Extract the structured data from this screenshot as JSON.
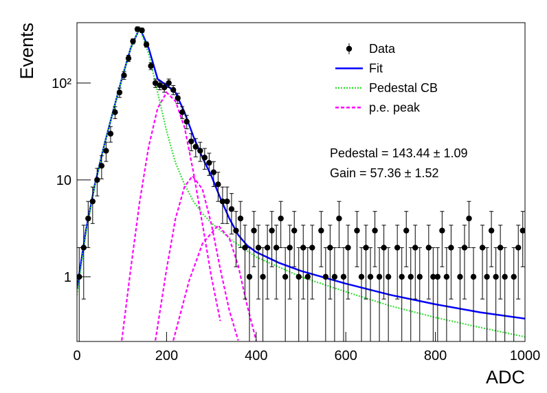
{
  "chart_data": {
    "type": "scatter",
    "xlabel": "ADC",
    "ylabel": "Events",
    "xlim": [
      0,
      1000
    ],
    "ylim": [
      0.215,
      420
    ],
    "xticks": [
      0,
      200,
      400,
      600,
      800,
      1000
    ],
    "yticks": [
      1,
      10,
      {
        "value": 100,
        "label": "10²"
      }
    ],
    "log_y": true,
    "grid": false,
    "legend": "upper right",
    "annotations": [
      "Pedestal = 143.44 ± 1.09",
      "Gain = 57.36 ± 1.52"
    ],
    "series": [
      {
        "name": "Data",
        "type": "scatter",
        "color": "#000000",
        "x": [
          5,
          15,
          25,
          35,
          45,
          55,
          65,
          75,
          85,
          95,
          105,
          115,
          125,
          135,
          145,
          155,
          165,
          175,
          185,
          195,
          205,
          215,
          225,
          235,
          245,
          255,
          265,
          275,
          285,
          295,
          305,
          315,
          325,
          335,
          345,
          355,
          365,
          375,
          385,
          395,
          405,
          415,
          425,
          435,
          445,
          455,
          465,
          475,
          485,
          495,
          505,
          515,
          525,
          535,
          545,
          555,
          565,
          575,
          585,
          595,
          605,
          615,
          625,
          635,
          645,
          655,
          665,
          675,
          685,
          695,
          705,
          715,
          725,
          735,
          745,
          755,
          765,
          775,
          785,
          795,
          805,
          815,
          825,
          835,
          845,
          855,
          865,
          875,
          885,
          895,
          905,
          915,
          925,
          935,
          945,
          955,
          965,
          975,
          985,
          995
        ],
        "values": [
          1,
          2,
          4,
          6,
          10,
          14,
          20,
          30,
          50,
          80,
          120,
          180,
          270,
          360,
          350,
          250,
          150,
          100,
          95,
          90,
          100,
          85,
          70,
          50,
          40,
          25,
          22,
          20,
          17,
          15,
          12,
          9,
          6,
          6,
          5,
          3,
          4,
          2,
          1,
          3,
          2,
          1,
          2,
          3,
          2,
          4,
          1,
          2,
          3,
          1,
          2,
          1,
          2,
          null,
          3,
          1,
          2,
          1,
          4,
          1,
          2,
          null,
          3,
          1,
          2,
          1,
          3,
          1,
          2,
          1,
          null,
          2,
          1,
          3,
          1,
          2,
          1,
          null,
          2,
          1,
          1,
          3,
          1,
          2,
          null,
          1,
          2,
          4,
          1,
          null,
          2,
          1,
          3,
          1,
          2,
          1,
          null,
          1,
          2,
          3
        ],
        "errors": [
          1,
          1.41,
          2,
          2.45,
          3.16,
          3.74,
          4.47,
          5.48,
          7.07,
          8.94,
          10.95,
          13.42,
          16.43,
          18.97,
          18.71,
          15.81,
          12.25,
          10,
          9.75,
          9.49,
          10,
          9.22,
          8.37,
          7.07,
          6.32,
          5,
          4.69,
          4.47,
          4.12,
          3.87,
          3.46,
          3,
          2.45,
          2.45,
          2.24,
          1.73,
          2,
          1.41,
          1,
          1.73,
          1.41,
          1,
          1.41,
          1.73,
          1.41,
          2,
          1,
          1.41,
          1.73,
          1,
          1.41,
          1,
          1.41,
          null,
          1.73,
          1,
          1.41,
          1,
          2,
          1,
          1.41,
          null,
          1.73,
          1,
          1.41,
          1,
          1.73,
          1,
          1.41,
          1,
          null,
          1.41,
          1,
          1.73,
          1,
          1.41,
          1,
          null,
          1.41,
          1,
          1,
          1.73,
          1,
          1.41,
          null,
          1,
          1.41,
          2,
          1,
          null,
          1.41,
          1,
          1.73,
          1,
          1.41,
          1,
          null,
          1,
          1.41,
          1.73
        ]
      },
      {
        "name": "Fit",
        "type": "line",
        "color": "#0000ff",
        "style": "solid",
        "x": [
          0,
          20,
          40,
          60,
          80,
          100,
          120,
          140,
          160,
          180,
          200,
          220,
          240,
          260,
          280,
          300,
          320,
          340,
          360,
          380,
          400,
          450,
          500,
          600,
          700,
          800,
          900,
          1000
        ],
        "values": [
          0.75,
          3,
          9,
          22,
          50,
          110,
          230,
          370,
          230,
          110,
          95,
          80,
          50,
          28,
          17,
          11,
          6.5,
          4,
          2.7,
          2.1,
          1.8,
          1.4,
          1.15,
          0.85,
          0.65,
          0.52,
          0.43,
          0.37
        ]
      },
      {
        "name": "Pedestal CB",
        "type": "line",
        "color": "#33dd33",
        "style": "dotted",
        "x": [
          0,
          20,
          40,
          60,
          80,
          100,
          120,
          140,
          160,
          180,
          200,
          220,
          240,
          260,
          280,
          300,
          350,
          400,
          500,
          600,
          700,
          800,
          900,
          1000
        ],
        "values": [
          0.65,
          2.8,
          8.8,
          22,
          50,
          110,
          230,
          370,
          200,
          80,
          32,
          15,
          9,
          6,
          4.5,
          3.6,
          2.3,
          1.6,
          1.0,
          0.7,
          0.5,
          0.38,
          0.3,
          0.24
        ]
      },
      {
        "name": "p.e. peak",
        "type": "line",
        "color": "#ff00ff",
        "style": "dashed",
        "x": [
          100,
          120,
          140,
          160,
          180,
          200,
          220,
          240,
          260,
          280,
          300,
          320,
          null,
          175,
          200,
          220,
          240,
          258,
          280,
          300,
          320,
          340,
          360,
          null,
          215,
          250,
          280,
          315,
          340,
          360,
          380,
          400
        ],
        "values": [
          0.22,
          1.2,
          6,
          22,
          55,
          80,
          65,
          35,
          12,
          3.5,
          1.0,
          0.35,
          null,
          0.22,
          1.2,
          4,
          8.5,
          11,
          8,
          3.5,
          1.2,
          0.45,
          0.22,
          null,
          0.22,
          0.9,
          2.2,
          3.4,
          2.5,
          1.3,
          0.5,
          0.22
        ]
      }
    ]
  }
}
